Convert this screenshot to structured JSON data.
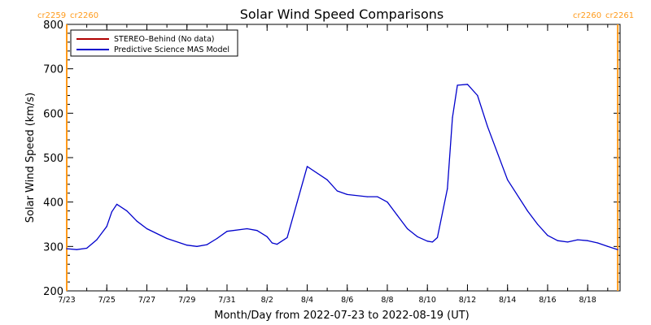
{
  "chart_data": {
    "type": "line",
    "title": "Solar Wind Speed Comparisons",
    "xlabel": "Month/Day from 2022-07-23 to 2022-08-19 (UT)",
    "ylabel": "Solar Wind Speed (km/s)",
    "xlim": [
      "2022-07-23",
      "2022-08-19"
    ],
    "ylim": [
      200,
      800
    ],
    "y_ticks": [
      200,
      300,
      400,
      500,
      600,
      700,
      800
    ],
    "x_tick_labels": [
      "7/23",
      "7/25",
      "7/27",
      "7/29",
      "7/31",
      "8/2",
      "8/4",
      "8/6",
      "8/8",
      "8/10",
      "8/12",
      "8/14",
      "8/16",
      "8/18"
    ],
    "x_tick_dates": [
      "2022-07-23",
      "2022-07-25",
      "2022-07-27",
      "2022-07-29",
      "2022-07-31",
      "2022-08-02",
      "2022-08-04",
      "2022-08-06",
      "2022-08-08",
      "2022-08-10",
      "2022-08-12",
      "2022-08-14",
      "2022-08-16",
      "2022-08-18"
    ],
    "legend_placement": "top-left",
    "carrington_markers": [
      {
        "label_left": "cr2259",
        "label_right": "cr2260",
        "date": "2022-07-23",
        "color": "#ff9a1a"
      },
      {
        "label_left": "cr2260",
        "label_right": "cr2261",
        "date": "2022-08-19 12:00",
        "color": "#ff9a1a"
      }
    ],
    "series": [
      {
        "name": "STEREO–Behind (No data)",
        "color": "#b00000",
        "x": [],
        "values": []
      },
      {
        "name": "Predictive Science MAS Model",
        "color": "#0000cc",
        "x": [
          "2022-07-23 00:00",
          "2022-07-23 12:00",
          "2022-07-24 00:00",
          "2022-07-24 12:00",
          "2022-07-25 00:00",
          "2022-07-25 06:00",
          "2022-07-25 12:00",
          "2022-07-26 00:00",
          "2022-07-26 12:00",
          "2022-07-27 00:00",
          "2022-07-28 00:00",
          "2022-07-29 00:00",
          "2022-07-29 12:00",
          "2022-07-30 00:00",
          "2022-07-30 12:00",
          "2022-07-31 00:00",
          "2022-08-01 00:00",
          "2022-08-01 12:00",
          "2022-08-02 00:00",
          "2022-08-02 06:00",
          "2022-08-02 12:00",
          "2022-08-03 00:00",
          "2022-08-03 12:00",
          "2022-08-04 00:00",
          "2022-08-05 00:00",
          "2022-08-05 12:00",
          "2022-08-06 00:00",
          "2022-08-07 00:00",
          "2022-08-07 12:00",
          "2022-08-08 00:00",
          "2022-08-08 12:00",
          "2022-08-09 00:00",
          "2022-08-09 12:00",
          "2022-08-10 00:00",
          "2022-08-10 06:00",
          "2022-08-10 12:00",
          "2022-08-11 00:00",
          "2022-08-11 06:00",
          "2022-08-11 12:00",
          "2022-08-12 00:00",
          "2022-08-12 12:00",
          "2022-08-13 00:00",
          "2022-08-14 00:00",
          "2022-08-15 00:00",
          "2022-08-15 12:00",
          "2022-08-16 00:00",
          "2022-08-16 12:00",
          "2022-08-17 00:00",
          "2022-08-17 12:00",
          "2022-08-18 00:00",
          "2022-08-18 12:00",
          "2022-08-19 00:00",
          "2022-08-19 12:00"
        ],
        "values": [
          295,
          293,
          296,
          315,
          345,
          378,
          395,
          380,
          357,
          340,
          318,
          303,
          300,
          304,
          318,
          334,
          340,
          336,
          322,
          308,
          305,
          320,
          400,
          480,
          450,
          425,
          417,
          412,
          412,
          400,
          370,
          340,
          322,
          312,
          310,
          320,
          430,
          590,
          663,
          665,
          640,
          570,
          450,
          380,
          350,
          325,
          313,
          310,
          315,
          313,
          308,
          300,
          293
        ]
      }
    ]
  }
}
